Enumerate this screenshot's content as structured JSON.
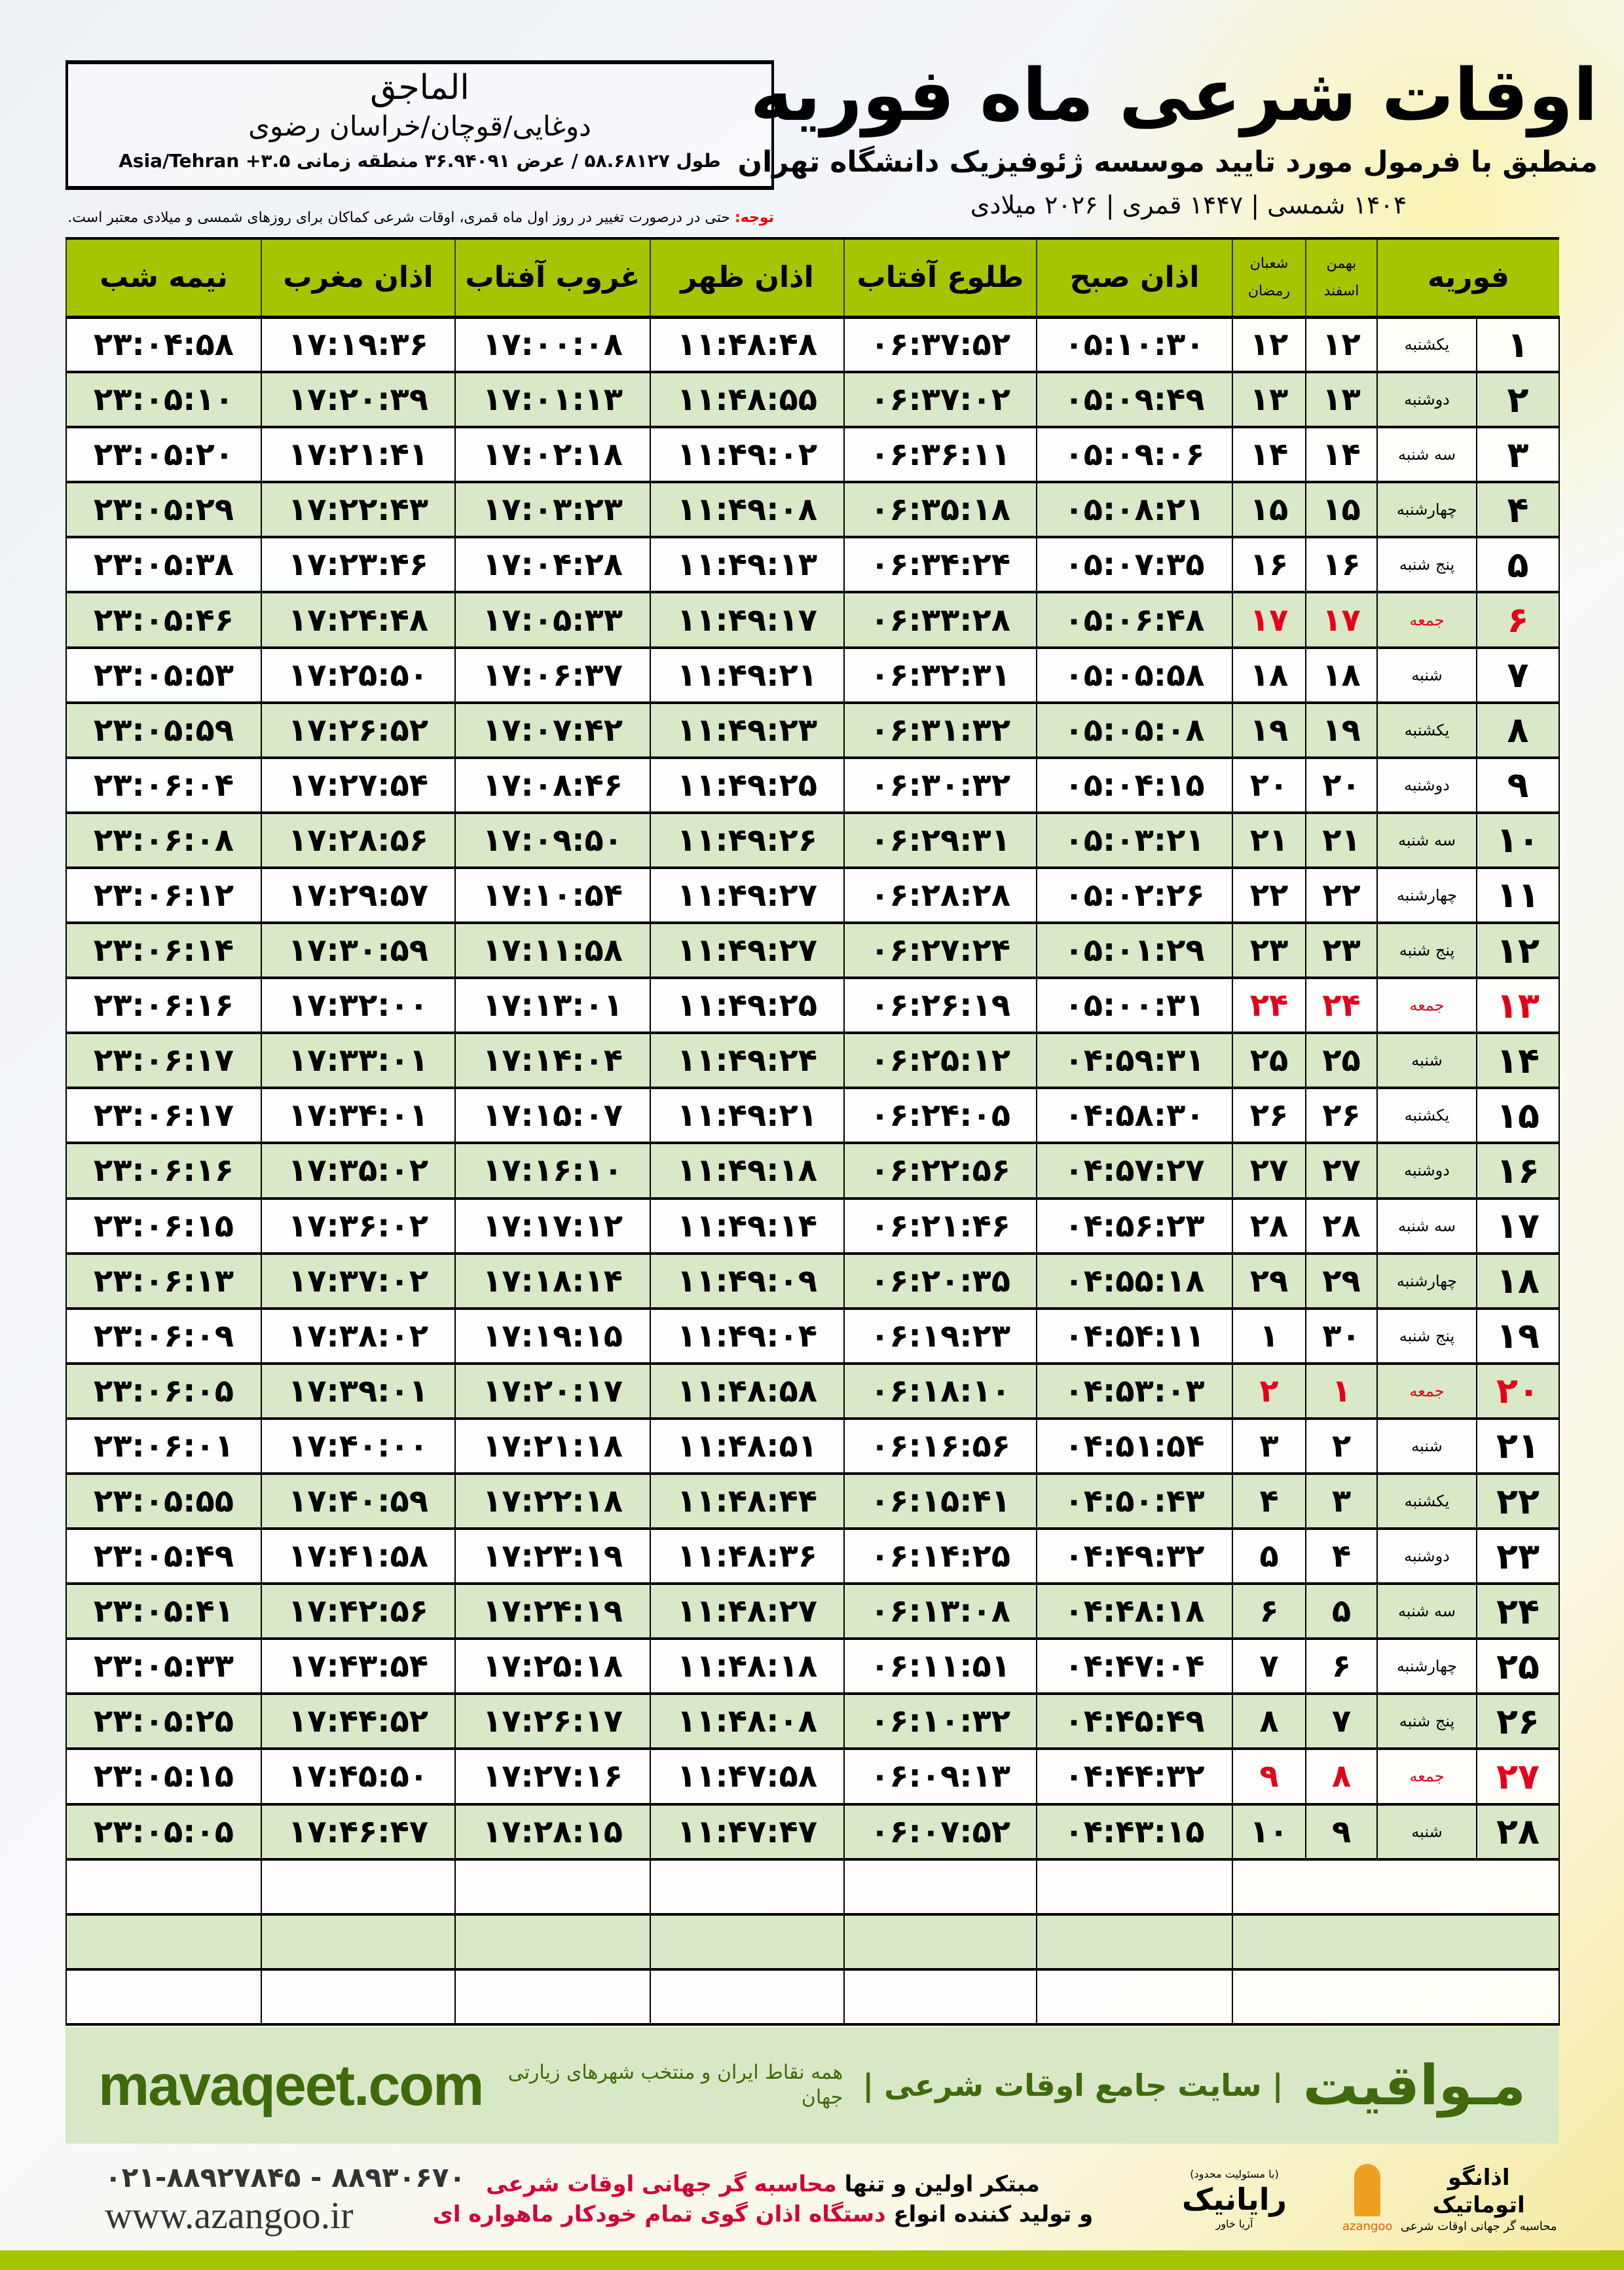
{
  "header": {
    "title": "اوقات شرعی ماه فوریه",
    "subtitle": "منطبق با فرمول مورد تایید موسسه ژئوفیزیک دانشگاه تهران",
    "years": "۱۴۰۴ شمسی | ۱۴۴۷ قمری | ۲۰۲۶ میلادی"
  },
  "location": {
    "name": "الماجق",
    "path": "دوغایی/قوچان/خراسان رضوی",
    "coords": "طول ۵۸.۶۸۱۲۷ / عرض ۳۶.۹۴۰۹۱ منطقه زمانی ۳.۵+ Asia/Tehran"
  },
  "note": {
    "label": "توجه:",
    "text": " حتی در درصورت تغییر در روز اول ماه قمری، اوقات شرعی کماکان برای روزهای شمسی و میلادی معتبر است."
  },
  "columns": {
    "month": "فوریه",
    "shamsi_top": "بهمن",
    "shamsi_bottom": "اسفند",
    "qamari_top": "شعبان",
    "qamari_bottom": "رمضان",
    "fajr": "اذان صبح",
    "sunrise": "طلوع آفتاب",
    "dhuhr": "اذان ظهر",
    "sunset": "غروب آفتاب",
    "maghrib": "اذان مغرب",
    "midnight": "نیمه شب"
  },
  "colors": {
    "header_green": "#a6c400",
    "row_green": "#d9e8c7",
    "holiday_red": "#e4001b",
    "brand_green": "#3f6a0b"
  },
  "rows": [
    {
      "day": "۱",
      "weekday": "یکشنبه",
      "shamsi": "۱۲",
      "qamari": "۱۲",
      "fajr": "۰۵:۱۰:۳۰",
      "sunrise": "۰۶:۳۷:۵۲",
      "dhuhr": "۱۱:۴۸:۴۸",
      "sunset": "۱۷:۰۰:۰۸",
      "maghrib": "۱۷:۱۹:۳۶",
      "midnight": "۲۳:۰۴:۵۸"
    },
    {
      "day": "۲",
      "weekday": "دوشنبه",
      "shamsi": "۱۳",
      "qamari": "۱۳",
      "fajr": "۰۵:۰۹:۴۹",
      "sunrise": "۰۶:۳۷:۰۲",
      "dhuhr": "۱۱:۴۸:۵۵",
      "sunset": "۱۷:۰۱:۱۳",
      "maghrib": "۱۷:۲۰:۳۹",
      "midnight": "۲۳:۰۵:۱۰"
    },
    {
      "day": "۳",
      "weekday": "سه شنبه",
      "shamsi": "۱۴",
      "qamari": "۱۴",
      "fajr": "۰۵:۰۹:۰۶",
      "sunrise": "۰۶:۳۶:۱۱",
      "dhuhr": "۱۱:۴۹:۰۲",
      "sunset": "۱۷:۰۲:۱۸",
      "maghrib": "۱۷:۲۱:۴۱",
      "midnight": "۲۳:۰۵:۲۰"
    },
    {
      "day": "۴",
      "weekday": "چهارشنبه",
      "shamsi": "۱۵",
      "qamari": "۱۵",
      "fajr": "۰۵:۰۸:۲۱",
      "sunrise": "۰۶:۳۵:۱۸",
      "dhuhr": "۱۱:۴۹:۰۸",
      "sunset": "۱۷:۰۳:۲۳",
      "maghrib": "۱۷:۲۲:۴۳",
      "midnight": "۲۳:۰۵:۲۹"
    },
    {
      "day": "۵",
      "weekday": "پنج شنبه",
      "shamsi": "۱۶",
      "qamari": "۱۶",
      "fajr": "۰۵:۰۷:۳۵",
      "sunrise": "۰۶:۳۴:۲۴",
      "dhuhr": "۱۱:۴۹:۱۳",
      "sunset": "۱۷:۰۴:۲۸",
      "maghrib": "۱۷:۲۳:۴۶",
      "midnight": "۲۳:۰۵:۳۸"
    },
    {
      "day": "۶",
      "weekday": "جمعه",
      "shamsi": "۱۷",
      "qamari": "۱۷",
      "fajr": "۰۵:۰۶:۴۸",
      "sunrise": "۰۶:۳۳:۲۸",
      "dhuhr": "۱۱:۴۹:۱۷",
      "sunset": "۱۷:۰۵:۳۳",
      "maghrib": "۱۷:۲۴:۴۸",
      "midnight": "۲۳:۰۵:۴۶",
      "holiday": true
    },
    {
      "day": "۷",
      "weekday": "شنبه",
      "shamsi": "۱۸",
      "qamari": "۱۸",
      "fajr": "۰۵:۰۵:۵۸",
      "sunrise": "۰۶:۳۲:۳۱",
      "dhuhr": "۱۱:۴۹:۲۱",
      "sunset": "۱۷:۰۶:۳۷",
      "maghrib": "۱۷:۲۵:۵۰",
      "midnight": "۲۳:۰۵:۵۳"
    },
    {
      "day": "۸",
      "weekday": "یکشنبه",
      "shamsi": "۱۹",
      "qamari": "۱۹",
      "fajr": "۰۵:۰۵:۰۸",
      "sunrise": "۰۶:۳۱:۳۲",
      "dhuhr": "۱۱:۴۹:۲۳",
      "sunset": "۱۷:۰۷:۴۲",
      "maghrib": "۱۷:۲۶:۵۲",
      "midnight": "۲۳:۰۵:۵۹"
    },
    {
      "day": "۹",
      "weekday": "دوشنبه",
      "shamsi": "۲۰",
      "qamari": "۲۰",
      "fajr": "۰۵:۰۴:۱۵",
      "sunrise": "۰۶:۳۰:۳۲",
      "dhuhr": "۱۱:۴۹:۲۵",
      "sunset": "۱۷:۰۸:۴۶",
      "maghrib": "۱۷:۲۷:۵۴",
      "midnight": "۲۳:۰۶:۰۴"
    },
    {
      "day": "۱۰",
      "weekday": "سه شنبه",
      "shamsi": "۲۱",
      "qamari": "۲۱",
      "fajr": "۰۵:۰۳:۲۱",
      "sunrise": "۰۶:۲۹:۳۱",
      "dhuhr": "۱۱:۴۹:۲۶",
      "sunset": "۱۷:۰۹:۵۰",
      "maghrib": "۱۷:۲۸:۵۶",
      "midnight": "۲۳:۰۶:۰۸"
    },
    {
      "day": "۱۱",
      "weekday": "چهارشنبه",
      "shamsi": "۲۲",
      "qamari": "۲۲",
      "fajr": "۰۵:۰۲:۲۶",
      "sunrise": "۰۶:۲۸:۲۸",
      "dhuhr": "۱۱:۴۹:۲۷",
      "sunset": "۱۷:۱۰:۵۴",
      "maghrib": "۱۷:۲۹:۵۷",
      "midnight": "۲۳:۰۶:۱۲"
    },
    {
      "day": "۱۲",
      "weekday": "پنج شنبه",
      "shamsi": "۲۳",
      "qamari": "۲۳",
      "fajr": "۰۵:۰۱:۲۹",
      "sunrise": "۰۶:۲۷:۲۴",
      "dhuhr": "۱۱:۴۹:۲۷",
      "sunset": "۱۷:۱۱:۵۸",
      "maghrib": "۱۷:۳۰:۵۹",
      "midnight": "۲۳:۰۶:۱۴"
    },
    {
      "day": "۱۳",
      "weekday": "جمعه",
      "shamsi": "۲۴",
      "qamari": "۲۴",
      "fajr": "۰۵:۰۰:۳۱",
      "sunrise": "۰۶:۲۶:۱۹",
      "dhuhr": "۱۱:۴۹:۲۵",
      "sunset": "۱۷:۱۳:۰۱",
      "maghrib": "۱۷:۳۲:۰۰",
      "midnight": "۲۳:۰۶:۱۶",
      "holiday": true
    },
    {
      "day": "۱۴",
      "weekday": "شنبه",
      "shamsi": "۲۵",
      "qamari": "۲۵",
      "fajr": "۰۴:۵۹:۳۱",
      "sunrise": "۰۶:۲۵:۱۲",
      "dhuhr": "۱۱:۴۹:۲۴",
      "sunset": "۱۷:۱۴:۰۴",
      "maghrib": "۱۷:۳۳:۰۱",
      "midnight": "۲۳:۰۶:۱۷"
    },
    {
      "day": "۱۵",
      "weekday": "یکشنبه",
      "shamsi": "۲۶",
      "qamari": "۲۶",
      "fajr": "۰۴:۵۸:۳۰",
      "sunrise": "۰۶:۲۴:۰۵",
      "dhuhr": "۱۱:۴۹:۲۱",
      "sunset": "۱۷:۱۵:۰۷",
      "maghrib": "۱۷:۳۴:۰۱",
      "midnight": "۲۳:۰۶:۱۷"
    },
    {
      "day": "۱۶",
      "weekday": "دوشنبه",
      "shamsi": "۲۷",
      "qamari": "۲۷",
      "fajr": "۰۴:۵۷:۲۷",
      "sunrise": "۰۶:۲۲:۵۶",
      "dhuhr": "۱۱:۴۹:۱۸",
      "sunset": "۱۷:۱۶:۱۰",
      "maghrib": "۱۷:۳۵:۰۲",
      "midnight": "۲۳:۰۶:۱۶"
    },
    {
      "day": "۱۷",
      "weekday": "سه شنبه",
      "shamsi": "۲۸",
      "qamari": "۲۸",
      "fajr": "۰۴:۵۶:۲۳",
      "sunrise": "۰۶:۲۱:۴۶",
      "dhuhr": "۱۱:۴۹:۱۴",
      "sunset": "۱۷:۱۷:۱۲",
      "maghrib": "۱۷:۳۶:۰۲",
      "midnight": "۲۳:۰۶:۱۵"
    },
    {
      "day": "۱۸",
      "weekday": "چهارشنبه",
      "shamsi": "۲۹",
      "qamari": "۲۹",
      "fajr": "۰۴:۵۵:۱۸",
      "sunrise": "۰۶:۲۰:۳۵",
      "dhuhr": "۱۱:۴۹:۰۹",
      "sunset": "۱۷:۱۸:۱۴",
      "maghrib": "۱۷:۳۷:۰۲",
      "midnight": "۲۳:۰۶:۱۳"
    },
    {
      "day": "۱۹",
      "weekday": "پنج شنبه",
      "shamsi": "۳۰",
      "qamari": "۱",
      "fajr": "۰۴:۵۴:۱۱",
      "sunrise": "۰۶:۱۹:۲۳",
      "dhuhr": "۱۱:۴۹:۰۴",
      "sunset": "۱۷:۱۹:۱۵",
      "maghrib": "۱۷:۳۸:۰۲",
      "midnight": "۲۳:۰۶:۰۹"
    },
    {
      "day": "۲۰",
      "weekday": "جمعه",
      "shamsi": "۱",
      "qamari": "۲",
      "fajr": "۰۴:۵۳:۰۳",
      "sunrise": "۰۶:۱۸:۱۰",
      "dhuhr": "۱۱:۴۸:۵۸",
      "sunset": "۱۷:۲۰:۱۷",
      "maghrib": "۱۷:۳۹:۰۱",
      "midnight": "۲۳:۰۶:۰۵",
      "holiday": true
    },
    {
      "day": "۲۱",
      "weekday": "شنبه",
      "shamsi": "۲",
      "qamari": "۳",
      "fajr": "۰۴:۵۱:۵۴",
      "sunrise": "۰۶:۱۶:۵۶",
      "dhuhr": "۱۱:۴۸:۵۱",
      "sunset": "۱۷:۲۱:۱۸",
      "maghrib": "۱۷:۴۰:۰۰",
      "midnight": "۲۳:۰۶:۰۱"
    },
    {
      "day": "۲۲",
      "weekday": "یکشنبه",
      "shamsi": "۳",
      "qamari": "۴",
      "fajr": "۰۴:۵۰:۴۳",
      "sunrise": "۰۶:۱۵:۴۱",
      "dhuhr": "۱۱:۴۸:۴۴",
      "sunset": "۱۷:۲۲:۱۸",
      "maghrib": "۱۷:۴۰:۵۹",
      "midnight": "۲۳:۰۵:۵۵"
    },
    {
      "day": "۲۳",
      "weekday": "دوشنبه",
      "shamsi": "۴",
      "qamari": "۵",
      "fajr": "۰۴:۴۹:۳۲",
      "sunrise": "۰۶:۱۴:۲۵",
      "dhuhr": "۱۱:۴۸:۳۶",
      "sunset": "۱۷:۲۳:۱۹",
      "maghrib": "۱۷:۴۱:۵۸",
      "midnight": "۲۳:۰۵:۴۹"
    },
    {
      "day": "۲۴",
      "weekday": "سه شنبه",
      "shamsi": "۵",
      "qamari": "۶",
      "fajr": "۰۴:۴۸:۱۸",
      "sunrise": "۰۶:۱۳:۰۸",
      "dhuhr": "۱۱:۴۸:۲۷",
      "sunset": "۱۷:۲۴:۱۹",
      "maghrib": "۱۷:۴۲:۵۶",
      "midnight": "۲۳:۰۵:۴۱"
    },
    {
      "day": "۲۵",
      "weekday": "چهارشنبه",
      "shamsi": "۶",
      "qamari": "۷",
      "fajr": "۰۴:۴۷:۰۴",
      "sunrise": "۰۶:۱۱:۵۱",
      "dhuhr": "۱۱:۴۸:۱۸",
      "sunset": "۱۷:۲۵:۱۸",
      "maghrib": "۱۷:۴۳:۵۴",
      "midnight": "۲۳:۰۵:۳۳"
    },
    {
      "day": "۲۶",
      "weekday": "پنج شنبه",
      "shamsi": "۷",
      "qamari": "۸",
      "fajr": "۰۴:۴۵:۴۹",
      "sunrise": "۰۶:۱۰:۳۲",
      "dhuhr": "۱۱:۴۸:۰۸",
      "sunset": "۱۷:۲۶:۱۷",
      "maghrib": "۱۷:۴۴:۵۲",
      "midnight": "۲۳:۰۵:۲۵"
    },
    {
      "day": "۲۷",
      "weekday": "جمعه",
      "shamsi": "۸",
      "qamari": "۹",
      "fajr": "۰۴:۴۴:۳۲",
      "sunrise": "۰۶:۰۹:۱۳",
      "dhuhr": "۱۱:۴۷:۵۸",
      "sunset": "۱۷:۲۷:۱۶",
      "maghrib": "۱۷:۴۵:۵۰",
      "midnight": "۲۳:۰۵:۱۵",
      "holiday": true
    },
    {
      "day": "۲۸",
      "weekday": "شنبه",
      "shamsi": "۹",
      "qamari": "۱۰",
      "fajr": "۰۴:۴۳:۱۵",
      "sunrise": "۰۶:۰۷:۵۲",
      "dhuhr": "۱۱:۴۷:۴۷",
      "sunset": "۱۷:۲۸:۱۵",
      "maghrib": "۱۷:۴۶:۴۷",
      "midnight": "۲۳:۰۵:۰۵"
    }
  ],
  "banner": {
    "site": "mavaqeet.com",
    "brand": "مـواقیت",
    "slogan": "| سایت جامع اوقات شرعی |",
    "slogan2": "همه نقاط ایران و منتخب شهرهای زیارتی جهان"
  },
  "footer": {
    "phones": "۰۲۱-۸۸۹۲۷۸۴۵ - ۸۸۹۳۰۶۷۰",
    "website": "www.azangoo.ir",
    "line1_a": "مبتکر اولین و تنها ",
    "line1_b": "محاسبه گر جهانی اوقات شرعی",
    "line2_a": "و تولید کننده انواع ",
    "line2_b": "دستگاه اذان گوی تمام خودکار ماهواره ای",
    "logo_rayanik": "رایانیک",
    "logo_rayanik_sub": "آریا خاور",
    "logo_rayanik_note": "(با مسئولیت محدود)",
    "logo_azangoo": "اذانگو اتوماتیک",
    "logo_azangoo_sub": "محاسبه گر جهانی اوقات شرعی",
    "logo_azangoo_en": "azangoo"
  }
}
